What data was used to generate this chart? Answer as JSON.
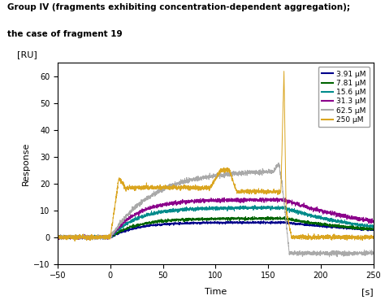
{
  "title_line1": "Group IV (fragments exhibiting concentration-dependent aggregation);",
  "title_line2": "the case of fragment 19",
  "xlabel": "Time",
  "ylabel": "Response",
  "xunit": "[s]",
  "yunit": "[RU]",
  "xlim": [
    -50,
    250
  ],
  "ylim": [
    -10,
    65
  ],
  "xticks": [
    -50,
    0,
    50,
    100,
    150,
    200,
    250
  ],
  "yticks": [
    -10,
    0,
    10,
    20,
    30,
    40,
    50,
    60
  ],
  "concentrations": [
    "3.91 μM",
    "7.81 μM",
    "15.6 μM",
    "31.3 μM",
    "62.5 μM",
    "250 μM"
  ],
  "colors": [
    "#00008B",
    "#006400",
    "#008B8B",
    "#8B008B",
    "#A9A9A9",
    "#DAA520"
  ],
  "background_color": "#ffffff"
}
